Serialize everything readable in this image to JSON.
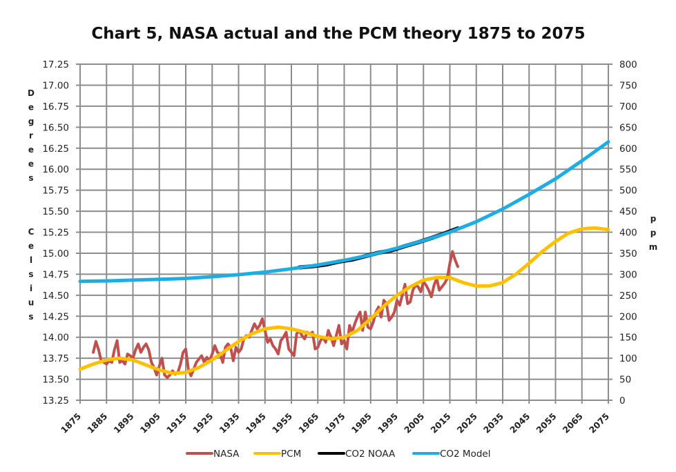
{
  "chart_data": {
    "type": "line",
    "title": "Chart 5, NASA actual and the PCM theory 1875 to 2075",
    "xlabel": "",
    "ylabel": "Degrees Celsius",
    "y2label": "ppm",
    "xlim": [
      1875,
      2075
    ],
    "ylim": [
      13.25,
      17.25
    ],
    "y2lim": [
      0,
      800
    ],
    "grid": true,
    "legend_position": "bottom",
    "x_ticks": [
      "1875",
      "1885",
      "1895",
      "1905",
      "1915",
      "1925",
      "1935",
      "1945",
      "1955",
      "1965",
      "1975",
      "1985",
      "1995",
      "2005",
      "2015",
      "2025",
      "2035",
      "2045",
      "2055",
      "2065",
      "2075"
    ],
    "y_ticks": [
      "17.25",
      "17.00",
      "16.75",
      "16.50",
      "16.25",
      "16.00",
      "15.75",
      "15.50",
      "15.25",
      "15.00",
      "14.75",
      "14.50",
      "14.25",
      "14.00",
      "13.75",
      "13.50",
      "13.25"
    ],
    "y2_ticks": [
      "800",
      "750",
      "700",
      "650",
      "600",
      "550",
      "500",
      "450",
      "400",
      "350",
      "300",
      "250",
      "200",
      "150",
      "100",
      "50",
      "0"
    ],
    "ylabel_letters": [
      "D",
      "e",
      "g",
      "r",
      "e",
      "e",
      "s"
    ],
    "ylabel_letters2": [
      "C",
      "e",
      "l",
      "s",
      "i",
      "u",
      "s"
    ],
    "y2label_letters": [
      "p",
      "p",
      "m"
    ],
    "series": [
      {
        "name": "NASA",
        "axis": "left",
        "color": "#c0504d",
        "x": [
          1880,
          1881,
          1882,
          1883,
          1884,
          1885,
          1886,
          1887,
          1888,
          1889,
          1890,
          1891,
          1892,
          1893,
          1894,
          1895,
          1896,
          1897,
          1898,
          1899,
          1900,
          1901,
          1902,
          1903,
          1904,
          1905,
          1906,
          1907,
          1908,
          1909,
          1910,
          1911,
          1912,
          1913,
          1914,
          1915,
          1916,
          1917,
          1918,
          1919,
          1920,
          1921,
          1922,
          1923,
          1924,
          1925,
          1926,
          1927,
          1928,
          1929,
          1930,
          1931,
          1932,
          1933,
          1934,
          1935,
          1936,
          1937,
          1938,
          1939,
          1940,
          1941,
          1942,
          1943,
          1944,
          1945,
          1946,
          1947,
          1948,
          1949,
          1950,
          1951,
          1952,
          1953,
          1954,
          1955,
          1956,
          1957,
          1958,
          1959,
          1960,
          1961,
          1962,
          1963,
          1964,
          1965,
          1966,
          1967,
          1968,
          1969,
          1970,
          1971,
          1972,
          1973,
          1974,
          1975,
          1976,
          1977,
          1978,
          1979,
          1980,
          1981,
          1982,
          1983,
          1984,
          1985,
          1986,
          1987,
          1988,
          1989,
          1990,
          1991,
          1992,
          1993,
          1994,
          1995,
          1996,
          1997,
          1998,
          1999,
          2000,
          2001,
          2002,
          2003,
          2004,
          2005,
          2006,
          2007,
          2008,
          2009,
          2010,
          2011,
          2012,
          2013,
          2014,
          2015,
          2016,
          2017,
          2018
        ],
        "values": [
          13.82,
          13.95,
          13.85,
          13.72,
          13.7,
          13.68,
          13.72,
          13.7,
          13.85,
          13.96,
          13.7,
          13.72,
          13.68,
          13.8,
          13.78,
          13.75,
          13.85,
          13.92,
          13.82,
          13.88,
          13.92,
          13.85,
          13.7,
          13.64,
          13.55,
          13.66,
          13.75,
          13.55,
          13.52,
          13.55,
          13.6,
          13.56,
          13.58,
          13.68,
          13.82,
          13.86,
          13.62,
          13.54,
          13.62,
          13.7,
          13.74,
          13.78,
          13.7,
          13.76,
          13.72,
          13.8,
          13.9,
          13.82,
          13.8,
          13.7,
          13.88,
          13.92,
          13.88,
          13.72,
          13.88,
          13.82,
          13.86,
          13.98,
          14.02,
          14.0,
          14.08,
          14.16,
          14.1,
          14.14,
          14.22,
          14.08,
          13.94,
          13.98,
          13.9,
          13.86,
          13.8,
          13.96,
          14.0,
          14.06,
          13.86,
          13.82,
          13.78,
          14.04,
          14.08,
          14.02,
          13.98,
          14.06,
          14.04,
          14.06,
          13.86,
          13.88,
          13.96,
          14.0,
          13.94,
          14.08,
          14.0,
          13.9,
          14.02,
          14.14,
          13.92,
          13.96,
          13.86,
          14.14,
          14.06,
          14.16,
          14.24,
          14.3,
          14.08,
          14.3,
          14.12,
          14.1,
          14.18,
          14.3,
          14.36,
          14.24,
          14.44,
          14.4,
          14.2,
          14.24,
          14.3,
          14.44,
          14.38,
          14.5,
          14.63,
          14.4,
          14.42,
          14.56,
          14.62,
          14.6,
          14.54,
          14.66,
          14.62,
          14.56,
          14.48,
          14.62,
          14.7,
          14.56,
          14.6,
          14.64,
          14.7,
          14.88,
          15.02,
          14.92,
          14.84
        ]
      },
      {
        "name": "PCM",
        "axis": "left",
        "color": "#ffc000",
        "x": [
          1875,
          1880,
          1885,
          1890,
          1895,
          1900,
          1905,
          1910,
          1915,
          1920,
          1925,
          1930,
          1935,
          1940,
          1945,
          1950,
          1955,
          1960,
          1965,
          1970,
          1975,
          1980,
          1985,
          1990,
          1995,
          2000,
          2005,
          2010,
          2015,
          2020,
          2025,
          2030,
          2035,
          2040,
          2045,
          2050,
          2055,
          2060,
          2065,
          2070,
          2075
        ],
        "values": [
          13.62,
          13.68,
          13.73,
          13.75,
          13.73,
          13.67,
          13.61,
          13.57,
          13.58,
          13.64,
          13.73,
          13.84,
          13.95,
          14.04,
          14.1,
          14.12,
          14.1,
          14.06,
          14.01,
          13.98,
          14.0,
          14.08,
          14.22,
          14.37,
          14.5,
          14.6,
          14.68,
          14.71,
          14.71,
          14.65,
          14.61,
          14.61,
          14.65,
          14.75,
          14.88,
          15.02,
          15.14,
          15.24,
          15.29,
          15.3,
          15.28
        ]
      },
      {
        "name": "CO2 NOAA",
        "axis": "right",
        "color": "#000000",
        "x": [
          1958,
          1963,
          1968,
          1973,
          1978,
          1983,
          1988,
          1993,
          1998,
          2003,
          2008,
          2013,
          2018
        ],
        "values": [
          316,
          319,
          323,
          330,
          335,
          343,
          351,
          357,
          367,
          376,
          386,
          397,
          409
        ]
      },
      {
        "name": "CO2 Model",
        "axis": "right",
        "color": "#1cade4",
        "x": [
          1875,
          1885,
          1895,
          1905,
          1915,
          1925,
          1935,
          1945,
          1955,
          1965,
          1975,
          1985,
          1995,
          2005,
          2015,
          2025,
          2035,
          2045,
          2055,
          2065,
          2075
        ],
        "values": [
          283,
          284,
          286,
          288,
          290,
          294,
          299,
          305,
          313,
          322,
          333,
          346,
          362,
          380,
          400,
          425,
          455,
          490,
          527,
          570,
          615
        ]
      }
    ]
  }
}
